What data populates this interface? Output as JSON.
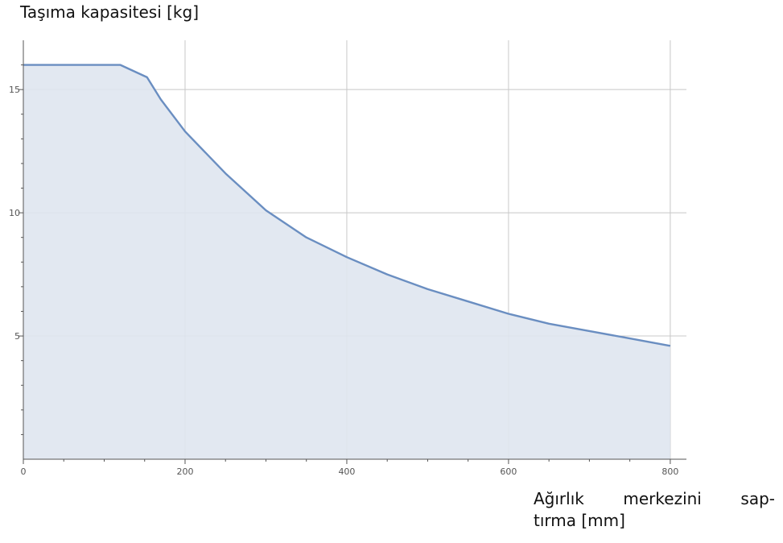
{
  "chart_data": {
    "type": "area",
    "ylabel": "Taşıma kapasitesi [kg]",
    "xlabel": "Ağırlık merkezini sap- tırma [mm]",
    "xlabel_lines": [
      [
        "Ağırlık",
        "merkezini",
        "sap-"
      ],
      [
        "tırma [mm]"
      ]
    ],
    "xlim": [
      0,
      820
    ],
    "ylim": [
      0,
      17
    ],
    "xticks": [
      0,
      200,
      400,
      600,
      800
    ],
    "yticks": [
      5,
      10,
      15
    ],
    "grid": true,
    "series": [
      {
        "x": [
          0,
          120,
          153,
          170,
          200,
          250,
          300,
          350,
          400,
          450,
          500,
          550,
          600,
          650,
          700,
          750,
          800
        ],
        "y": [
          16,
          16,
          15.5,
          14.6,
          13.3,
          11.6,
          10.1,
          9.0,
          8.2,
          7.5,
          6.9,
          6.4,
          5.9,
          5.5,
          5.2,
          4.9,
          4.6
        ]
      }
    ],
    "colors": {
      "line": "#6a8ec1",
      "fill": "#dfe5ef",
      "grid": "#c8c8c8",
      "axis": "#555555"
    }
  }
}
